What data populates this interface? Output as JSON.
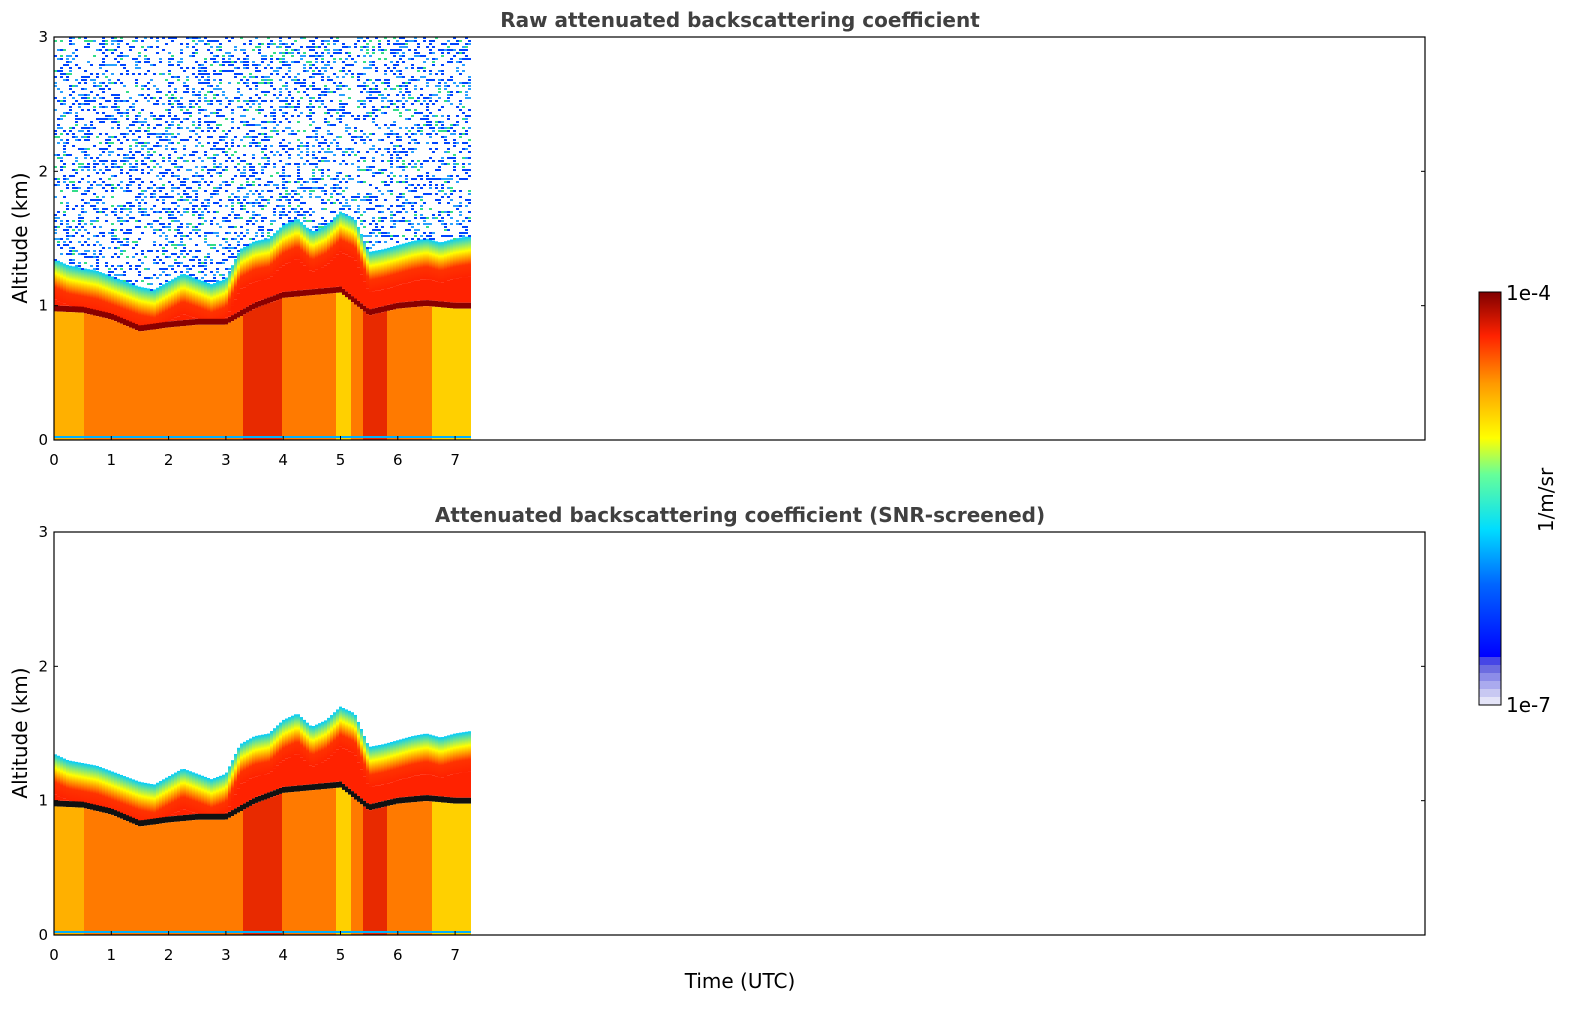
{
  "chart_data": {
    "type": "heatmap",
    "xlabel": "Time (UTC)",
    "colorbar": {
      "label": "1/m/sr",
      "min_label": "1e-7",
      "max_label": "1e-4",
      "scale": "log",
      "colormap": "jet",
      "low_end_colors": [
        "#e4e4f8",
        "#c8c8f2",
        "#aaaaee",
        "#8c8ce8",
        "#6c6ce0",
        "#4646e6"
      ]
    },
    "panels": [
      {
        "title": "Raw attenuated backscattering coefficient",
        "ylabel": "Altitude (km)",
        "xlim": [
          0,
          24
        ],
        "ylim": [
          0,
          3
        ],
        "xticks": [
          "0",
          "1",
          "2",
          "3",
          "4",
          "5",
          "6",
          "7"
        ],
        "yticks": [
          "0",
          "1",
          "2",
          "3"
        ],
        "data_extent_hours": 7.3,
        "screened": false
      },
      {
        "title": "Attenuated backscattering coefficient (SNR-screened)",
        "ylabel": "Altitude (km)",
        "xlim": [
          0,
          24
        ],
        "ylim": [
          0,
          3
        ],
        "xticks": [
          "0",
          "1",
          "2",
          "3",
          "4",
          "5",
          "6",
          "7"
        ],
        "yticks": [
          "0",
          "1",
          "2",
          "3"
        ],
        "data_extent_hours": 7.3,
        "screened": true
      }
    ],
    "boundary_layer_top_km": [
      [
        0.0,
        1.05
      ],
      [
        0.25,
        1.0
      ],
      [
        0.5,
        0.98
      ],
      [
        0.75,
        0.96
      ],
      [
        1.0,
        0.92
      ],
      [
        1.25,
        0.88
      ],
      [
        1.5,
        0.84
      ],
      [
        1.75,
        0.82
      ],
      [
        2.0,
        0.88
      ],
      [
        2.25,
        0.94
      ],
      [
        2.5,
        0.9
      ],
      [
        2.75,
        0.86
      ],
      [
        3.0,
        0.9
      ],
      [
        3.25,
        1.12
      ],
      [
        3.5,
        1.18
      ],
      [
        3.75,
        1.2
      ],
      [
        4.0,
        1.3
      ],
      [
        4.25,
        1.35
      ],
      [
        4.5,
        1.25
      ],
      [
        4.75,
        1.3
      ],
      [
        5.0,
        1.4
      ],
      [
        5.25,
        1.35
      ],
      [
        5.5,
        1.1
      ],
      [
        5.75,
        1.12
      ],
      [
        6.0,
        1.15
      ],
      [
        6.25,
        1.18
      ],
      [
        6.5,
        1.2
      ],
      [
        6.75,
        1.17
      ],
      [
        7.0,
        1.2
      ],
      [
        7.3,
        1.22
      ]
    ],
    "max_signal_layer_km": [
      [
        0.0,
        0.98
      ],
      [
        0.5,
        0.97
      ],
      [
        1.0,
        0.92
      ],
      [
        1.5,
        0.83
      ],
      [
        2.0,
        0.86
      ],
      [
        2.5,
        0.88
      ],
      [
        3.0,
        0.88
      ],
      [
        3.5,
        1.0
      ],
      [
        4.0,
        1.08
      ],
      [
        4.5,
        1.1
      ],
      [
        5.0,
        1.12
      ],
      [
        5.5,
        0.95
      ],
      [
        6.0,
        1.0
      ],
      [
        6.5,
        1.02
      ],
      [
        7.0,
        1.0
      ],
      [
        7.3,
        1.0
      ]
    ]
  }
}
